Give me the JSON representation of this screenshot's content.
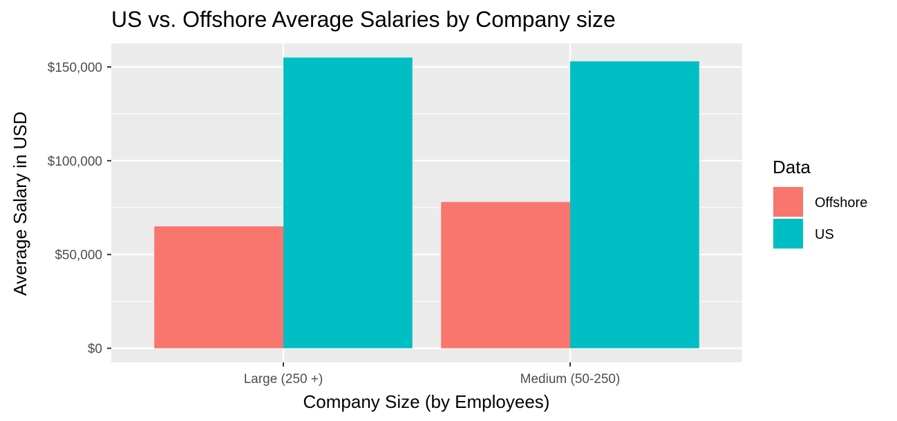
{
  "chart_data": {
    "type": "bar",
    "title": "US vs. Offshore Average Salaries by Company size",
    "xlabel": "Company Size (by Employees)",
    "ylabel": "Average Salary in USD",
    "categories": [
      "Large (250 +)",
      "Medium (50-250)"
    ],
    "series": [
      {
        "name": "Offshore",
        "color": "#F8766D",
        "values": [
          65000,
          78000
        ]
      },
      {
        "name": "US",
        "color": "#00BFC4",
        "values": [
          155000,
          153000
        ]
      }
    ],
    "ylim": [
      -7500,
      162500
    ],
    "yticks": [
      0,
      50000,
      100000,
      150000
    ],
    "ytick_labels": [
      "$0",
      "$50,000",
      "$100,000",
      "$150,000"
    ],
    "legend": {
      "title": "Data",
      "position": "right"
    },
    "grid": true,
    "panel_background": "#EBEBEB"
  }
}
